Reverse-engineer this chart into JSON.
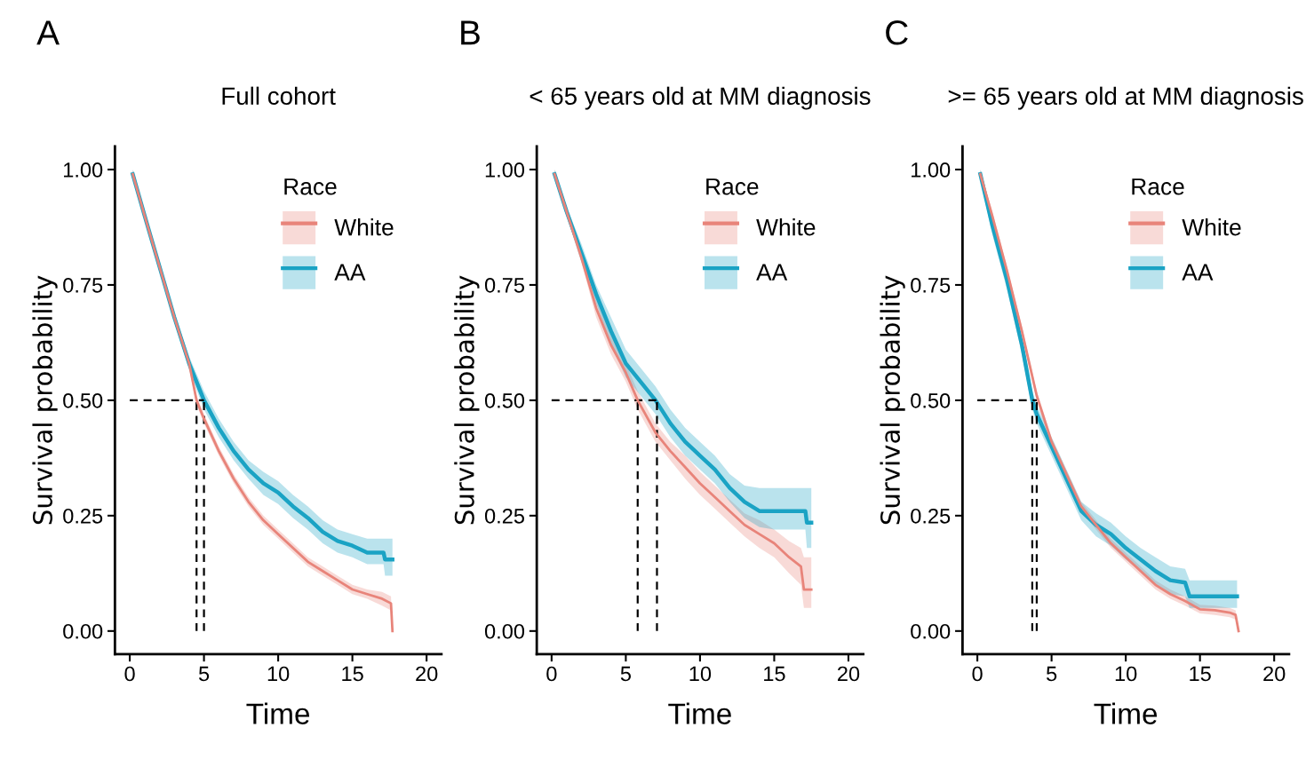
{
  "chart_data": [
    {
      "type": "line",
      "title": "Full cohort",
      "xlabel": "Time",
      "ylabel": "Survival probability",
      "legend_title": "Race",
      "annotations": [
        "A"
      ],
      "xlim": [
        -1,
        21
      ],
      "xticks": [
        0,
        5,
        10,
        15,
        20
      ],
      "ylim": [
        -0.05,
        1.05
      ],
      "yticks": [
        {
          "value": 0,
          "label": "0.00"
        },
        {
          "value": 0.25,
          "label": "0.25"
        },
        {
          "value": 0.5,
          "label": "0.50"
        },
        {
          "value": 0.75,
          "label": "0.75"
        },
        {
          "value": 1,
          "label": "1.00"
        }
      ],
      "grid": false,
      "legend": "top right",
      "ref_lines": [
        {
          "axis": "y",
          "value": 0.5,
          "color": "#000000",
          "line_style": "dashed"
        },
        {
          "axis": "x",
          "value": 4.5,
          "color": "#000000",
          "line_style": "dashed"
        },
        {
          "axis": "x",
          "value": 5.0,
          "color": "#000000",
          "line_style": "dashed"
        }
      ],
      "series": [
        {
          "name": "White",
          "color": "#e8847a",
          "x": [
            0.2,
            1,
            2,
            3,
            4,
            4.5,
            5,
            6,
            7,
            8,
            9,
            10,
            11,
            12,
            13,
            14,
            15,
            16,
            17,
            17.6,
            17.7
          ],
          "values": [
            0.99,
            0.9,
            0.79,
            0.68,
            0.58,
            0.5,
            0.46,
            0.39,
            0.33,
            0.28,
            0.24,
            0.21,
            0.18,
            0.15,
            0.13,
            0.11,
            0.09,
            0.08,
            0.07,
            0.06,
            0.0
          ],
          "lower": [
            0.98,
            0.89,
            0.78,
            0.67,
            0.57,
            0.49,
            0.45,
            0.38,
            0.32,
            0.27,
            0.23,
            0.2,
            0.17,
            0.14,
            0.12,
            0.1,
            0.08,
            0.07,
            0.055,
            0.045,
            0.0
          ],
          "upper": [
            1.0,
            0.91,
            0.8,
            0.69,
            0.59,
            0.51,
            0.47,
            0.4,
            0.34,
            0.29,
            0.25,
            0.22,
            0.19,
            0.16,
            0.14,
            0.12,
            0.1,
            0.09,
            0.085,
            0.075,
            0.0
          ]
        },
        {
          "name": "AA",
          "color": "#1aa3c4",
          "x": [
            0.2,
            1,
            2,
            3,
            4,
            5,
            6,
            7,
            8,
            9,
            10,
            11,
            12,
            13,
            14,
            15,
            16,
            17.1,
            17.2,
            17.7
          ],
          "values": [
            0.99,
            0.9,
            0.79,
            0.68,
            0.58,
            0.5,
            0.44,
            0.39,
            0.35,
            0.32,
            0.3,
            0.27,
            0.245,
            0.215,
            0.195,
            0.185,
            0.17,
            0.17,
            0.155,
            0.155
          ],
          "lower": [
            0.98,
            0.89,
            0.78,
            0.67,
            0.565,
            0.48,
            0.42,
            0.37,
            0.33,
            0.295,
            0.275,
            0.245,
            0.22,
            0.19,
            0.17,
            0.16,
            0.145,
            0.145,
            0.12,
            0.12
          ],
          "upper": [
            1.0,
            0.91,
            0.8,
            0.69,
            0.595,
            0.52,
            0.46,
            0.41,
            0.37,
            0.345,
            0.325,
            0.295,
            0.27,
            0.24,
            0.22,
            0.21,
            0.2,
            0.2,
            0.2,
            0.2
          ]
        }
      ]
    },
    {
      "type": "line",
      "title": "< 65 years old at MM diagnosis",
      "xlabel": "Time",
      "ylabel": "Survival probability",
      "legend_title": "Race",
      "annotations": [
        "B"
      ],
      "xlim": [
        -1,
        21
      ],
      "xticks": [
        0,
        5,
        10,
        15,
        20
      ],
      "ylim": [
        -0.05,
        1.05
      ],
      "yticks": [
        {
          "value": 0,
          "label": "0.00"
        },
        {
          "value": 0.25,
          "label": "0.25"
        },
        {
          "value": 0.5,
          "label": "0.50"
        },
        {
          "value": 0.75,
          "label": "0.75"
        },
        {
          "value": 1,
          "label": "1.00"
        }
      ],
      "grid": false,
      "legend": "top right",
      "ref_lines": [
        {
          "axis": "y",
          "value": 0.5,
          "color": "#000000",
          "line_style": "dashed"
        },
        {
          "axis": "x",
          "value": 5.8,
          "color": "#000000",
          "line_style": "dashed"
        },
        {
          "axis": "x",
          "value": 7.1,
          "color": "#000000",
          "line_style": "dashed"
        }
      ],
      "series": [
        {
          "name": "White",
          "color": "#e8847a",
          "x": [
            0.2,
            1,
            2,
            3,
            4,
            5,
            5.8,
            7,
            8,
            9,
            10,
            11,
            12,
            13,
            14,
            15,
            16,
            16.8,
            17,
            17.5
          ],
          "values": [
            0.99,
            0.91,
            0.81,
            0.7,
            0.62,
            0.56,
            0.5,
            0.43,
            0.39,
            0.355,
            0.32,
            0.29,
            0.26,
            0.23,
            0.21,
            0.19,
            0.16,
            0.14,
            0.09,
            0.09
          ],
          "lower": [
            0.98,
            0.9,
            0.8,
            0.68,
            0.6,
            0.54,
            0.48,
            0.41,
            0.37,
            0.33,
            0.295,
            0.265,
            0.235,
            0.205,
            0.18,
            0.16,
            0.125,
            0.1,
            0.05,
            0.05
          ],
          "upper": [
            1.0,
            0.92,
            0.82,
            0.72,
            0.64,
            0.58,
            0.52,
            0.45,
            0.41,
            0.38,
            0.345,
            0.315,
            0.285,
            0.255,
            0.24,
            0.22,
            0.195,
            0.18,
            0.16,
            0.16
          ]
        },
        {
          "name": "AA",
          "color": "#1aa3c4",
          "x": [
            0.2,
            1,
            2,
            3,
            4,
            5,
            6,
            7,
            8,
            9,
            10,
            11,
            12,
            13,
            14,
            15,
            16,
            17.1,
            17.2,
            17.5
          ],
          "values": [
            0.99,
            0.91,
            0.82,
            0.73,
            0.65,
            0.58,
            0.54,
            0.5,
            0.45,
            0.41,
            0.38,
            0.35,
            0.31,
            0.28,
            0.26,
            0.26,
            0.26,
            0.26,
            0.235,
            0.235
          ],
          "lower": [
            0.98,
            0.9,
            0.8,
            0.71,
            0.62,
            0.55,
            0.51,
            0.47,
            0.42,
            0.38,
            0.35,
            0.32,
            0.28,
            0.245,
            0.225,
            0.22,
            0.22,
            0.22,
            0.18,
            0.18
          ],
          "upper": [
            1.0,
            0.92,
            0.84,
            0.75,
            0.68,
            0.61,
            0.57,
            0.53,
            0.48,
            0.44,
            0.41,
            0.38,
            0.34,
            0.315,
            0.31,
            0.31,
            0.31,
            0.31,
            0.31,
            0.31
          ]
        }
      ]
    },
    {
      "type": "line",
      "title": ">= 65 years old at MM diagnosis",
      "xlabel": "Time",
      "ylabel": "Survival probability",
      "legend_title": "Race",
      "annotations": [
        "C"
      ],
      "xlim": [
        -1,
        21
      ],
      "xticks": [
        0,
        5,
        10,
        15,
        20
      ],
      "ylim": [
        -0.05,
        1.05
      ],
      "yticks": [
        {
          "value": 0,
          "label": "0.00"
        },
        {
          "value": 0.25,
          "label": "0.25"
        },
        {
          "value": 0.5,
          "label": "0.50"
        },
        {
          "value": 0.75,
          "label": "0.75"
        },
        {
          "value": 1,
          "label": "1.00"
        }
      ],
      "grid": false,
      "legend": "top right",
      "ref_lines": [
        {
          "axis": "y",
          "value": 0.5,
          "color": "#000000",
          "line_style": "dashed"
        },
        {
          "axis": "x",
          "value": 3.7,
          "color": "#000000",
          "line_style": "dashed"
        },
        {
          "axis": "x",
          "value": 4.0,
          "color": "#000000",
          "line_style": "dashed"
        }
      ],
      "series": [
        {
          "name": "White",
          "color": "#e8847a",
          "x": [
            0.2,
            1,
            2,
            3,
            4,
            5,
            6,
            7,
            8,
            9,
            10,
            11,
            12,
            13,
            14,
            15,
            16,
            17,
            17.4,
            17.6
          ],
          "values": [
            0.99,
            0.9,
            0.78,
            0.65,
            0.51,
            0.41,
            0.34,
            0.27,
            0.23,
            0.19,
            0.16,
            0.13,
            0.1,
            0.08,
            0.065,
            0.047,
            0.045,
            0.04,
            0.035,
            0.0
          ],
          "lower": [
            0.98,
            0.89,
            0.77,
            0.64,
            0.5,
            0.4,
            0.33,
            0.26,
            0.22,
            0.18,
            0.15,
            0.12,
            0.09,
            0.07,
            0.055,
            0.038,
            0.035,
            0.03,
            0.025,
            0.0
          ],
          "upper": [
            1.0,
            0.91,
            0.79,
            0.66,
            0.52,
            0.42,
            0.35,
            0.28,
            0.24,
            0.2,
            0.17,
            0.14,
            0.11,
            0.09,
            0.075,
            0.057,
            0.055,
            0.05,
            0.045,
            0.0
          ]
        },
        {
          "name": "AA",
          "color": "#1aa3c4",
          "x": [
            0.2,
            1,
            2,
            3,
            3.7,
            4,
            5,
            6,
            7,
            8,
            9,
            10,
            11,
            12,
            13,
            14,
            14.3,
            15,
            16,
            17.5
          ],
          "values": [
            0.99,
            0.88,
            0.76,
            0.62,
            0.5,
            0.47,
            0.4,
            0.33,
            0.26,
            0.23,
            0.21,
            0.18,
            0.155,
            0.13,
            0.11,
            0.105,
            0.075,
            0.075,
            0.075,
            0.075
          ],
          "lower": [
            0.98,
            0.86,
            0.74,
            0.6,
            0.48,
            0.45,
            0.38,
            0.31,
            0.24,
            0.205,
            0.185,
            0.155,
            0.13,
            0.1,
            0.08,
            0.075,
            0.05,
            0.05,
            0.05,
            0.05
          ],
          "upper": [
            1.0,
            0.9,
            0.78,
            0.64,
            0.52,
            0.49,
            0.42,
            0.35,
            0.28,
            0.255,
            0.235,
            0.205,
            0.18,
            0.16,
            0.14,
            0.135,
            0.11,
            0.11,
            0.11,
            0.11
          ]
        }
      ]
    }
  ]
}
